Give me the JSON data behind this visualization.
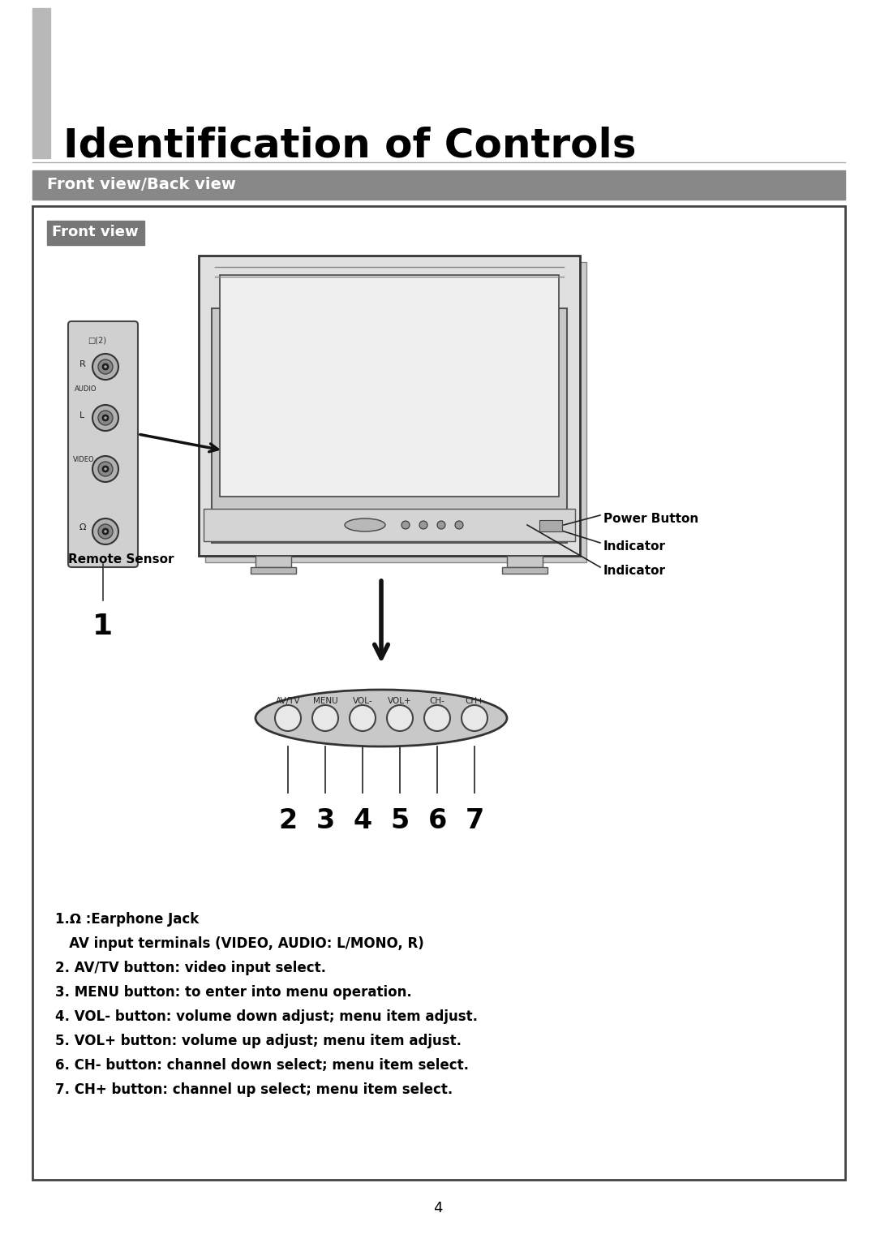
{
  "title": "Identification of Controls",
  "subtitle": "Front view/Back view",
  "section_label": "Front view",
  "page_number": "4",
  "background_color": "#ffffff",
  "sidebar_color": "#b8b8b8",
  "header_bar_color": "#888888",
  "section_box_color": "#777777",
  "descriptions": [
    "1.Ω :Earphone Jack",
    "   AV input terminals (VIDEO, AUDIO: L/MONO, R)",
    "2. AV/TV button: video input select.",
    "3. MENU button: to enter into menu operation.",
    "4. VOL- button: volume down adjust; menu item adjust.",
    "5. VOL+ button: volume up adjust; menu item adjust.",
    "6. CH- button: channel down select; menu item select.",
    "7. CH+ button: channel up select; menu item select."
  ],
  "button_labels": [
    "AV/TV",
    "MENU",
    "VOL-",
    "VOL+",
    "CH-",
    "CH+"
  ],
  "numbers_bottom": [
    "2",
    "3",
    "4",
    "5",
    "6",
    "7"
  ]
}
